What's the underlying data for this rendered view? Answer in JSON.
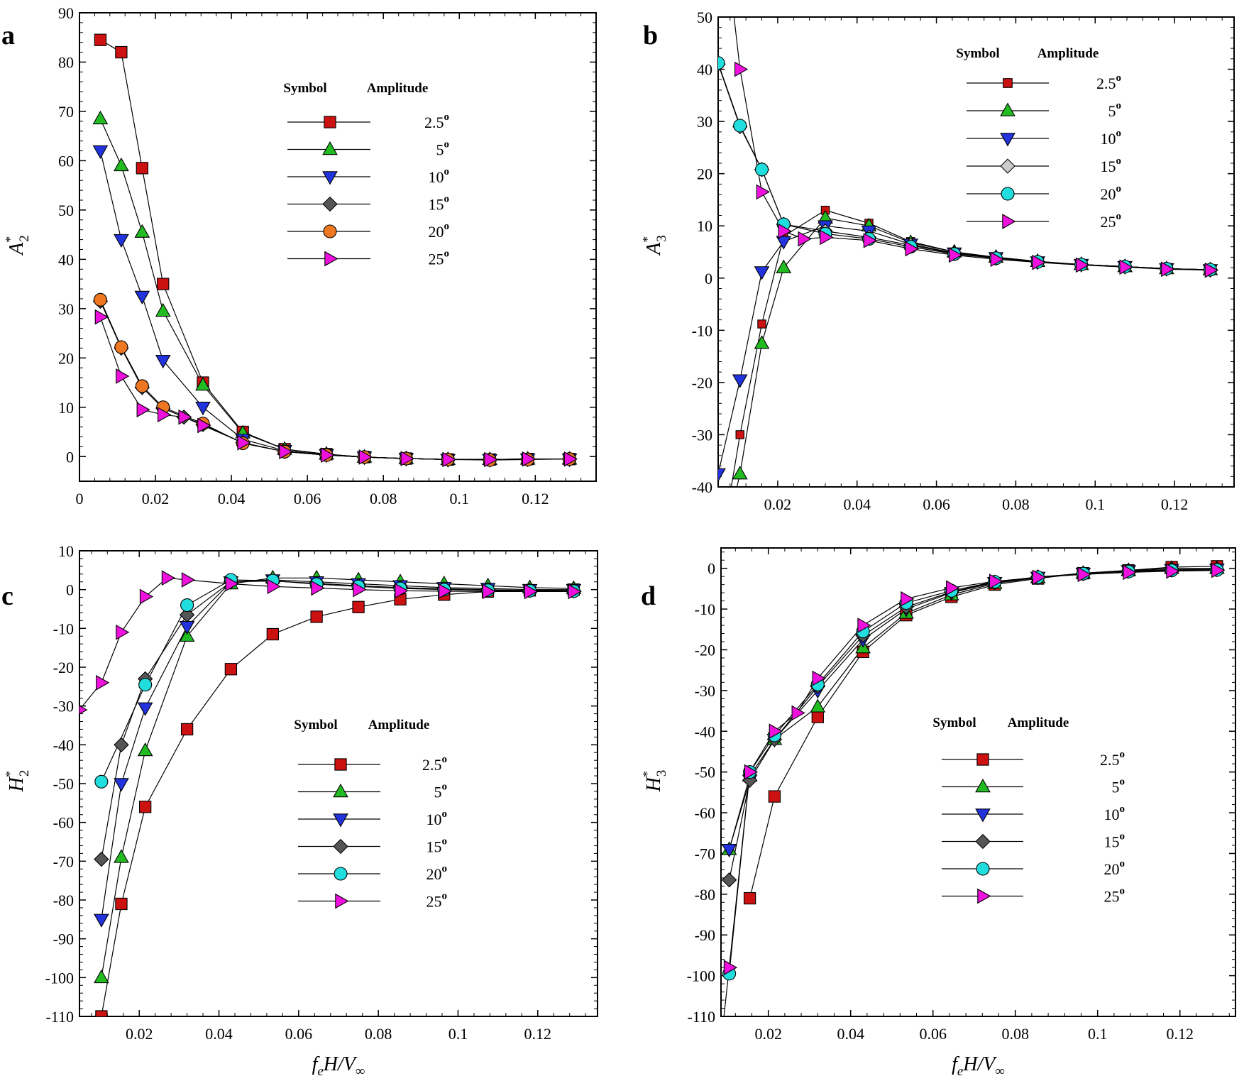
{
  "figure": {
    "xlabel": "f_eH/V_∞"
  },
  "legend": {
    "symbol_header": "Symbol",
    "amplitude_header": "Amplitude"
  },
  "series_styles": [
    {
      "name": "2.5°",
      "amp": "2.5",
      "marker": "square",
      "color": "#cc1111"
    },
    {
      "name": "5°",
      "amp": "5",
      "marker": "triangle-up",
      "color": "#22bb22"
    },
    {
      "name": "10°",
      "amp": "10",
      "marker": "triangle-down",
      "color": "#2233dd"
    },
    {
      "name": "15°",
      "amp": "15",
      "marker": "diamond",
      "color": "#555555"
    },
    {
      "name": "20°",
      "amp": "20",
      "marker": "circle",
      "color": "#ee7722"
    },
    {
      "name": "25°",
      "amp": "25",
      "marker": "triangle-right",
      "color": "#ee11dd"
    }
  ],
  "chart_data": [
    {
      "panel": "a",
      "type": "line",
      "ylabel": "A*2",
      "xlim": [
        0,
        0.136
      ],
      "ylim": [
        -5,
        90
      ],
      "xticks": [
        "0",
        "0.02",
        "0.04",
        "0.06",
        "0.08",
        "0.1",
        "0.12"
      ],
      "xtick_values": [
        0,
        0.02,
        0.04,
        0.06,
        0.08,
        0.1,
        0.12
      ],
      "yticks": [
        "0",
        "10",
        "20",
        "30",
        "40",
        "50",
        "60",
        "70",
        "80",
        "90"
      ],
      "ytick_values": [
        0,
        10,
        20,
        30,
        40,
        50,
        60,
        70,
        80,
        90
      ],
      "legend_colors": [
        "#cc1111",
        "#22bb22",
        "#2233dd",
        "#555555",
        "#ee7722",
        "#ee11dd"
      ],
      "series": [
        {
          "name": "2.5°",
          "color": "#cc1111",
          "x": [
            0.0055,
            0.011,
            0.0165,
            0.022,
            0.0325,
            0.043,
            0.054,
            0.065,
            0.075,
            0.086,
            0.097,
            0.108,
            0.118,
            0.129
          ],
          "y": [
            84.5,
            82,
            58.5,
            35,
            15,
            5,
            1.5,
            0.5,
            -0.1,
            -0.4,
            -0.6,
            -0.6,
            -0.5,
            -0.5
          ]
        },
        {
          "name": "5°",
          "color": "#22bb22",
          "x": [
            0.0055,
            0.011,
            0.0165,
            0.022,
            0.0325,
            0.043,
            0.054,
            0.065,
            0.075,
            0.086,
            0.097,
            0.108,
            0.118,
            0.129
          ],
          "y": [
            68.5,
            59,
            45.5,
            29.5,
            14.5,
            4.8,
            1.5,
            0.5,
            -0.1,
            -0.4,
            -0.6,
            -0.6,
            -0.5,
            -0.5
          ]
        },
        {
          "name": "10°",
          "color": "#2233dd",
          "x": [
            0.0055,
            0.011,
            0.0165,
            0.022,
            0.0325,
            0.043,
            0.054,
            0.065,
            0.075,
            0.086,
            0.097,
            0.108,
            0.118,
            0.129
          ],
          "y": [
            62,
            44,
            32.5,
            19.5,
            10,
            3.5,
            1.2,
            0.4,
            -0.1,
            -0.4,
            -0.6,
            -0.6,
            -0.5,
            -0.5
          ]
        },
        {
          "name": "15°",
          "color": "#555555",
          "x": [
            0.0055,
            0.011,
            0.0165,
            0.022,
            0.0275,
            0.0325,
            0.043,
            0.054,
            0.065,
            0.075,
            0.086,
            0.097,
            0.108,
            0.118,
            0.129
          ],
          "y": [
            31.5,
            22,
            14,
            9.8,
            8,
            6.5,
            2.8,
            1,
            0.3,
            -0.1,
            -0.4,
            -0.6,
            -0.6,
            -0.5,
            -0.5
          ]
        },
        {
          "name": "20°",
          "color": "#ee7722",
          "x": [
            0.0055,
            0.011,
            0.0165,
            0.022,
            0.0325,
            0.043,
            0.054,
            0.065,
            0.075,
            0.086,
            0.097,
            0.108,
            0.118,
            0.129
          ],
          "y": [
            31.8,
            22.2,
            14.3,
            10,
            6.7,
            2.7,
            1,
            0.3,
            -0.1,
            -0.4,
            -0.6,
            -0.7,
            -0.6,
            -0.5
          ]
        },
        {
          "name": "25°",
          "color": "#ee11dd",
          "x": [
            0.0055,
            0.011,
            0.0165,
            0.022,
            0.0275,
            0.0325,
            0.043,
            0.054,
            0.065,
            0.075,
            0.086,
            0.097,
            0.108,
            0.118,
            0.129
          ],
          "y": [
            28.3,
            16.3,
            9.5,
            8.5,
            8,
            6.3,
            2.8,
            1,
            0.3,
            -0.1,
            -0.4,
            -0.6,
            -0.6,
            -0.5,
            -0.5
          ]
        }
      ]
    },
    {
      "panel": "b",
      "type": "line",
      "ylabel": "A*3",
      "xlim": [
        0.005,
        0.135
      ],
      "ylim": [
        -40,
        50
      ],
      "xticks": [
        "0.02",
        "0.04",
        "0.06",
        "0.08",
        "0.1",
        "0.12"
      ],
      "xtick_values": [
        0.02,
        0.04,
        0.06,
        0.08,
        0.1,
        0.12
      ],
      "yticks": [
        "-40",
        "-30",
        "-20",
        "-10",
        "0",
        "10",
        "20",
        "30",
        "40",
        "50"
      ],
      "ytick_values": [
        -40,
        -30,
        -20,
        -10,
        0,
        10,
        20,
        30,
        40,
        50
      ],
      "legend_colors": [
        "#cc1111",
        "#22bb22",
        "#2233dd",
        "#cccccc",
        "#22dddd",
        "#ee11dd"
      ],
      "series": [
        {
          "name": "2.5°",
          "color": "#cc1111",
          "marker_size": 0.7,
          "x": [
            0.005,
            0.0105,
            0.016,
            0.0215,
            0.032,
            0.043,
            0.0535,
            0.0645,
            0.075,
            0.0855,
            0.0965,
            0.1075,
            0.118,
            0.129
          ],
          "y": [
            -55,
            -30,
            -8.8,
            8,
            13,
            10.5,
            7,
            5,
            4,
            3.2,
            2.6,
            2.2,
            1.8,
            1.6
          ]
        },
        {
          "name": "5°",
          "color": "#22bb22",
          "x": [
            0.005,
            0.0105,
            0.016,
            0.0215,
            0.032,
            0.043,
            0.0535,
            0.0645,
            0.075,
            0.0855,
            0.0965,
            0.1075,
            0.118,
            0.129
          ],
          "y": [
            -55,
            -37.5,
            -12.5,
            2,
            11.5,
            10,
            6.8,
            5,
            4,
            3.2,
            2.6,
            2.2,
            1.8,
            1.6
          ]
        },
        {
          "name": "10°",
          "color": "#2233dd",
          "x": [
            0.005,
            0.0105,
            0.016,
            0.0215,
            0.032,
            0.043,
            0.0535,
            0.0645,
            0.075,
            0.0855,
            0.0965,
            0.1075,
            0.118,
            0.129
          ],
          "y": [
            -37.5,
            -19.5,
            1.2,
            7,
            10,
            9,
            6.5,
            4.8,
            3.9,
            3.1,
            2.6,
            2.2,
            1.8,
            1.6
          ]
        },
        {
          "name": "15°",
          "color": "#cccccc",
          "x": [
            0.005,
            0.0105,
            0.016,
            0.0215,
            0.032,
            0.043,
            0.0535,
            0.0645,
            0.075,
            0.0855,
            0.0965,
            0.1075,
            0.118,
            0.129
          ],
          "y": [
            41,
            29,
            20.8,
            10.3,
            9,
            7.8,
            6.3,
            4.7,
            3.8,
            3.1,
            2.6,
            2.2,
            1.8,
            1.6
          ]
        },
        {
          "name": "20°",
          "color": "#22dddd",
          "x": [
            0.005,
            0.0105,
            0.016,
            0.0215,
            0.032,
            0.043,
            0.0535,
            0.0645,
            0.075,
            0.0855,
            0.0965,
            0.1075,
            0.118,
            0.129
          ],
          "y": [
            41.2,
            29.2,
            20.8,
            10.3,
            8.5,
            7.5,
            6,
            4.6,
            3.8,
            3.1,
            2.6,
            2.2,
            1.8,
            1.6
          ]
        },
        {
          "name": "25°",
          "color": "#ee11dd",
          "x": [
            0.0075,
            0.0105,
            0.016,
            0.0215,
            0.0265,
            0.032,
            0.043,
            0.0535,
            0.0645,
            0.075,
            0.0855,
            0.0965,
            0.1075,
            0.118,
            0.129
          ],
          "y": [
            60,
            40,
            16.5,
            9,
            7.5,
            7.8,
            7.2,
            5.6,
            4.4,
            3.6,
            3,
            2.5,
            2.1,
            1.7,
            1.5
          ]
        }
      ]
    },
    {
      "panel": "c",
      "type": "line",
      "ylabel": "H*2",
      "xlim": [
        0.005,
        0.135
      ],
      "ylim": [
        -110,
        10
      ],
      "xticks": [
        "0.02",
        "0.04",
        "0.06",
        "0.08",
        "0.1",
        "0.12"
      ],
      "xtick_values": [
        0.02,
        0.04,
        0.06,
        0.08,
        0.1,
        0.12
      ],
      "yticks": [
        "-110",
        "-100",
        "-90",
        "-80",
        "-70",
        "-60",
        "-50",
        "-40",
        "-30",
        "-20",
        "-10",
        "0",
        "10"
      ],
      "ytick_values": [
        -110,
        -100,
        -90,
        -80,
        -70,
        -60,
        -50,
        -40,
        -30,
        -20,
        -10,
        0,
        10
      ],
      "legend_colors": [
        "#cc1111",
        "#22bb22",
        "#2233dd",
        "#555555",
        "#22dddd",
        "#ee11dd"
      ],
      "series": [
        {
          "name": "2.5°",
          "color": "#cc1111",
          "x": [
            0.0105,
            0.0155,
            0.0215,
            0.032,
            0.043,
            0.0535,
            0.0645,
            0.075,
            0.0855,
            0.0965,
            0.1075,
            0.118,
            0.129
          ],
          "y": [
            -110,
            -81,
            -56,
            -36,
            -20.5,
            -11.5,
            -7,
            -4.5,
            -2.5,
            -1.3,
            -0.5,
            -0.2,
            0
          ]
        },
        {
          "name": "5°",
          "color": "#22bb22",
          "x": [
            0.0105,
            0.0155,
            0.0215,
            0.032,
            0.043,
            0.0535,
            0.0645,
            0.075,
            0.0855,
            0.0965,
            0.1075,
            0.118,
            0.129
          ],
          "y": [
            -100,
            -69,
            -41.5,
            -12,
            1.5,
            3,
            3,
            2.5,
            2,
            1.5,
            1,
            0.5,
            0.3
          ]
        },
        {
          "name": "10°",
          "color": "#2233dd",
          "x": [
            0.0105,
            0.0155,
            0.0215,
            0.032,
            0.043,
            0.0535,
            0.0645,
            0.075,
            0.0855,
            0.0965,
            0.1075,
            0.118,
            0.129
          ],
          "y": [
            -85,
            -50,
            -30.5,
            -9.5,
            2,
            2.5,
            2,
            1.5,
            1,
            0.5,
            0.3,
            0,
            0
          ]
        },
        {
          "name": "15°",
          "color": "#555555",
          "x": [
            0.0105,
            0.0155,
            0.0215,
            0.032,
            0.043,
            0.0535,
            0.0645,
            0.075,
            0.0855,
            0.0965,
            0.1075,
            0.118,
            0.129
          ],
          "y": [
            -69.5,
            -40,
            -23,
            -6.5,
            2,
            2.2,
            1.6,
            1,
            0.5,
            0.2,
            0,
            -0.2,
            -0.3
          ]
        },
        {
          "name": "20°",
          "color": "#22dddd",
          "x": [
            0.0105,
            0.0215,
            0.032,
            0.043,
            0.0535,
            0.0645,
            0.075,
            0.0855,
            0.0965,
            0.1075,
            0.118,
            0.129
          ],
          "y": [
            -49.5,
            -24.5,
            -4,
            2.5,
            2.3,
            1.4,
            0.8,
            0.3,
            0,
            -0.2,
            -0.3,
            -0.4
          ]
        },
        {
          "name": "25°",
          "color": "#ee11dd",
          "x": [
            0.005,
            0.0105,
            0.0155,
            0.0215,
            0.027,
            0.032,
            0.043,
            0.0535,
            0.0645,
            0.075,
            0.0855,
            0.0965,
            0.1075,
            0.118,
            0.129
          ],
          "y": [
            -31,
            -24,
            -11,
            -1.8,
            3,
            2.5,
            1.5,
            0.8,
            0.4,
            0,
            -0.3,
            -0.4,
            -0.5,
            -0.5,
            -0.5
          ]
        }
      ]
    },
    {
      "panel": "d",
      "type": "line",
      "ylabel": "H*3",
      "xlim": [
        0.0085,
        0.1335
      ],
      "ylim": [
        -110,
        5
      ],
      "xticks": [
        "0.02",
        "0.04",
        "0.06",
        "0.08",
        "0.1",
        "0.12"
      ],
      "xtick_values": [
        0.02,
        0.04,
        0.06,
        0.08,
        0.1,
        0.12
      ],
      "yticks": [
        "-110",
        "-100",
        "-90",
        "-80",
        "-70",
        "-60",
        "-50",
        "-40",
        "-30",
        "-20",
        "-10",
        "0"
      ],
      "ytick_values": [
        -110,
        -100,
        -90,
        -80,
        -70,
        -60,
        -50,
        -40,
        -30,
        -20,
        -10,
        0
      ],
      "legend_colors": [
        "#cc1111",
        "#22bb22",
        "#2233dd",
        "#555555",
        "#22dddd",
        "#ee11dd"
      ],
      "series": [
        {
          "name": "2.5°",
          "color": "#cc1111",
          "x": [
            0.0155,
            0.0215,
            0.032,
            0.043,
            0.0535,
            0.0645,
            0.075,
            0.0855,
            0.0965,
            0.1075,
            0.118,
            0.129
          ],
          "y": [
            -81,
            -56,
            -36.5,
            -20.5,
            -11.5,
            -7,
            -4,
            -2.5,
            -1.2,
            -0.5,
            0.3,
            0.5
          ]
        },
        {
          "name": "5°",
          "color": "#22bb22",
          "x": [
            0.0105,
            0.0155,
            0.0215,
            0.032,
            0.043,
            0.0535,
            0.0645,
            0.075,
            0.0855,
            0.0965,
            0.1075,
            0.118,
            0.129
          ],
          "y": [
            -69,
            -51,
            -42,
            -34,
            -19.5,
            -11,
            -6.5,
            -3.7,
            -2.3,
            -1.2,
            -0.5,
            0,
            0
          ]
        },
        {
          "name": "10°",
          "color": "#2233dd",
          "x": [
            0.0105,
            0.0155,
            0.0215,
            0.032,
            0.043,
            0.0535,
            0.0645,
            0.075,
            0.0855,
            0.0965,
            0.1075,
            0.118,
            0.129
          ],
          "y": [
            -69,
            -52,
            -42,
            -30,
            -17.5,
            -10,
            -6,
            -3.5,
            -2.2,
            -1.2,
            -0.6,
            -0.3,
            -0.2
          ]
        },
        {
          "name": "15°",
          "color": "#555555",
          "x": [
            0.0105,
            0.0155,
            0.0215,
            0.032,
            0.043,
            0.0535,
            0.0645,
            0.075,
            0.0855,
            0.0965,
            0.1075,
            0.118,
            0.129
          ],
          "y": [
            -76.5,
            -52,
            -42,
            -29,
            -16.5,
            -9.5,
            -5.8,
            -3.4,
            -2.1,
            -1.3,
            -0.7,
            -0.4,
            -0.3
          ]
        },
        {
          "name": "20°",
          "color": "#22dddd",
          "x": [
            0.0105,
            0.0155,
            0.0215,
            0.032,
            0.043,
            0.0535,
            0.0645,
            0.075,
            0.0855,
            0.0965,
            0.1075,
            0.118,
            0.129
          ],
          "y": [
            -99.5,
            -50,
            -41,
            -28.5,
            -15.5,
            -8.5,
            -5.5,
            -3.3,
            -2.2,
            -1.3,
            -0.8,
            -0.5,
            -0.4
          ]
        },
        {
          "name": "25°",
          "color": "#ee11dd",
          "x": [
            0.009,
            0.0105,
            0.0155,
            0.0215,
            0.027,
            0.032,
            0.043,
            0.0535,
            0.0645,
            0.075,
            0.0855,
            0.0965,
            0.1075,
            0.118,
            0.129
          ],
          "y": [
            -112,
            -98,
            -50,
            -40,
            -35.5,
            -27,
            -14,
            -7.5,
            -4.8,
            -3.2,
            -2.2,
            -1.5,
            -1,
            -0.7,
            -0.5
          ]
        }
      ]
    }
  ]
}
